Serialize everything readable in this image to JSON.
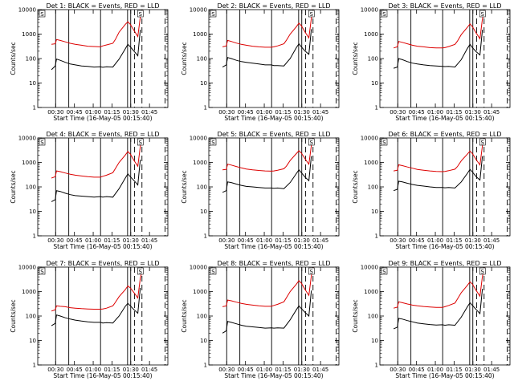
{
  "figure": {
    "panel_titles": [
      "Det 1: BLACK = Events, RED = LLD",
      "Det 2: BLACK = Events, RED = LLD",
      "Det 3: BLACK = Events, RED = LLD",
      "Det 4: BLACK = Events, RED = LLD",
      "Det 5: BLACK = Events, RED = LLD",
      "Det 6: BLACK = Events, RED = LLD",
      "Det 7: BLACK = Events, RED = LLD",
      "Det 8: BLACK = Events, RED = LLD",
      "Det 9: BLACK = Events, RED = LLD"
    ],
    "xlabel": "Start Time (16-May-05 00:15:40)",
    "ylabel": "Counts/sec",
    "xtick_labels": [
      "00:30",
      "00:45",
      "01:00",
      "01:15",
      "01:30",
      "01:45"
    ],
    "ytick_labels": [
      "1",
      "10",
      "100",
      "1000",
      "10000"
    ],
    "colors": {
      "events": "#000000",
      "lld": "#dd0000"
    }
  },
  "chart_data": {
    "type": "line",
    "layout": "3x3 grid of detector panels",
    "x_unit": "minutes since 00:15:40",
    "y_scale": "log",
    "ylim": [
      1,
      10000
    ],
    "xlim": [
      0,
      104
    ],
    "xtick_values": [
      14.33,
      29.33,
      44.33,
      59.33,
      74.33,
      89.33
    ],
    "solid_vertical_lines_x": [
      14.3,
      24.8,
      50.2,
      71.8,
      74.3
    ],
    "dashed_vertical_lines_x": [
      77.3,
      83.3,
      101.8
    ],
    "legend_marks": [
      "S",
      "S"
    ],
    "panels": [
      {
        "detector": 1,
        "series": [
          {
            "name": "Events",
            "color": "#000000",
            "x": [
              11,
              14,
              15,
              18,
              22,
              26,
              30,
              35,
              40,
              45,
              50,
              52,
              55,
              60,
              65,
              70,
              72,
              74,
              77,
              80,
              82
            ],
            "y": [
              35,
              50,
              95,
              85,
              70,
              60,
              55,
              50,
              48,
              45,
              46,
              44,
              46,
              45,
              95,
              250,
              380,
              300,
              200,
              130,
              1500
            ]
          },
          {
            "name": "LLD",
            "color": "#dd0000",
            "x": [
              11,
              14,
              15,
              18,
              22,
              26,
              30,
              35,
              40,
              45,
              50,
              52,
              55,
              60,
              62,
              65,
              70,
              72,
              74,
              77,
              80,
              82,
              84
            ],
            "y": [
              380,
              400,
              600,
              550,
              480,
              420,
              380,
              350,
              320,
              310,
              300,
              330,
              360,
              420,
              600,
              1200,
              2500,
              3200,
              2500,
              1400,
              800,
              5000,
              9500
            ]
          }
        ]
      },
      {
        "detector": 2,
        "series": [
          {
            "name": "Events",
            "color": "#000000",
            "x": [
              11,
              14,
              15,
              18,
              22,
              26,
              30,
              35,
              40,
              45,
              50,
              52,
              55,
              60,
              65,
              70,
              72,
              74,
              77,
              80,
              82
            ],
            "y": [
              45,
              55,
              110,
              100,
              85,
              75,
              70,
              65,
              60,
              55,
              55,
              52,
              52,
              50,
              100,
              280,
              400,
              300,
              200,
              150,
              1600
            ]
          },
          {
            "name": "LLD",
            "color": "#dd0000",
            "x": [
              11,
              14,
              15,
              18,
              22,
              26,
              30,
              35,
              40,
              45,
              50,
              52,
              55,
              60,
              62,
              65,
              70,
              72,
              74,
              77,
              80,
              82,
              84
            ],
            "y": [
              300,
              330,
              550,
              500,
              430,
              380,
              350,
              320,
              300,
              290,
              290,
              300,
              330,
              400,
              560,
              1000,
              2000,
              2800,
              2200,
              1200,
              700,
              4500,
              9500
            ]
          }
        ]
      },
      {
        "detector": 3,
        "series": [
          {
            "name": "Events",
            "color": "#000000",
            "x": [
              11,
              14,
              15,
              18,
              22,
              26,
              30,
              35,
              40,
              45,
              50,
              52,
              55,
              60,
              65,
              70,
              72,
              74,
              77,
              80,
              82
            ],
            "y": [
              40,
              45,
              100,
              90,
              75,
              65,
              60,
              55,
              52,
              50,
              48,
              47,
              48,
              45,
              90,
              260,
              380,
              280,
              190,
              140,
              1500
            ]
          },
          {
            "name": "LLD",
            "color": "#dd0000",
            "x": [
              11,
              14,
              15,
              18,
              22,
              26,
              30,
              35,
              40,
              45,
              50,
              52,
              55,
              60,
              62,
              65,
              70,
              72,
              74,
              77,
              80,
              82,
              84
            ],
            "y": [
              270,
              300,
              500,
              460,
              400,
              350,
              320,
              300,
              280,
              270,
              270,
              280,
              310,
              380,
              520,
              950,
              1900,
              2600,
              2000,
              1100,
              650,
              4200,
              9500
            ]
          }
        ]
      },
      {
        "detector": 4,
        "series": [
          {
            "name": "Events",
            "color": "#000000",
            "x": [
              11,
              14,
              15,
              18,
              22,
              26,
              30,
              35,
              40,
              45,
              50,
              52,
              55,
              60,
              65,
              70,
              72,
              74,
              77,
              80,
              82
            ],
            "y": [
              25,
              30,
              70,
              65,
              55,
              48,
              44,
              42,
              40,
              38,
              40,
              38,
              40,
              38,
              85,
              230,
              340,
              260,
              180,
              120,
              1300
            ]
          },
          {
            "name": "LLD",
            "color": "#dd0000",
            "x": [
              11,
              14,
              15,
              18,
              22,
              26,
              30,
              35,
              40,
              45,
              50,
              52,
              55,
              60,
              62,
              65,
              70,
              72,
              74,
              77,
              80,
              82,
              84
            ],
            "y": [
              230,
              260,
              450,
              420,
              370,
              330,
              300,
              280,
              260,
              250,
              250,
              270,
              300,
              380,
              560,
              1000,
              2000,
              2800,
              2200,
              1200,
              700,
              4500,
              9500
            ]
          }
        ]
      },
      {
        "detector": 5,
        "series": [
          {
            "name": "Events",
            "color": "#000000",
            "x": [
              11,
              14,
              15,
              18,
              22,
              26,
              30,
              35,
              40,
              45,
              50,
              52,
              55,
              60,
              65,
              70,
              72,
              74,
              77,
              80,
              82
            ],
            "y": [
              60,
              70,
              160,
              150,
              130,
              115,
              105,
              100,
              95,
              90,
              90,
              88,
              90,
              85,
              150,
              350,
              500,
              380,
              250,
              180,
              1800
            ]
          },
          {
            "name": "LLD",
            "color": "#dd0000",
            "x": [
              11,
              14,
              15,
              18,
              22,
              26,
              30,
              35,
              40,
              45,
              50,
              52,
              55,
              60,
              62,
              65,
              70,
              72,
              74,
              77,
              80,
              82,
              84
            ],
            "y": [
              500,
              520,
              850,
              780,
              680,
              600,
              540,
              500,
              470,
              450,
              440,
              450,
              480,
              550,
              700,
              1200,
              2300,
              3000,
              2400,
              1400,
              850,
              5000,
              9500
            ]
          }
        ]
      },
      {
        "detector": 6,
        "series": [
          {
            "name": "Events",
            "color": "#000000",
            "x": [
              11,
              14,
              15,
              18,
              22,
              26,
              30,
              35,
              40,
              45,
              50,
              52,
              55,
              60,
              65,
              70,
              72,
              74,
              77,
              80,
              82
            ],
            "y": [
              70,
              80,
              170,
              160,
              140,
              125,
              115,
              108,
              100,
              95,
              95,
              92,
              94,
              90,
              160,
              360,
              520,
              400,
              260,
              190,
              1800
            ]
          },
          {
            "name": "LLD",
            "color": "#dd0000",
            "x": [
              11,
              14,
              15,
              18,
              22,
              26,
              30,
              35,
              40,
              45,
              50,
              52,
              55,
              60,
              62,
              65,
              70,
              72,
              74,
              77,
              80,
              82,
              84
            ],
            "y": [
              450,
              480,
              800,
              740,
              650,
              580,
              520,
              480,
              450,
              430,
              420,
              430,
              460,
              530,
              680,
              1150,
              2200,
              2900,
              2300,
              1300,
              800,
              4800,
              9500
            ]
          }
        ]
      },
      {
        "detector": 7,
        "series": [
          {
            "name": "Events",
            "color": "#000000",
            "x": [
              11,
              14,
              15,
              18,
              22,
              26,
              30,
              35,
              40,
              45,
              50,
              52,
              55,
              60,
              65,
              70,
              72,
              74,
              77,
              80,
              82
            ],
            "y": [
              40,
              50,
              110,
              100,
              85,
              75,
              68,
              62,
              58,
              55,
              55,
              52,
              54,
              52,
              100,
              250,
              330,
              260,
              180,
              130,
              1400
            ]
          },
          {
            "name": "LLD",
            "color": "#dd0000",
            "x": [
              11,
              14,
              15,
              18,
              22,
              26,
              30,
              35,
              40,
              45,
              50,
              52,
              55,
              60,
              62,
              65,
              70,
              72,
              74,
              77,
              80,
              82,
              84
            ],
            "y": [
              160,
              180,
              260,
              250,
              240,
              220,
              210,
              200,
              195,
              190,
              190,
              195,
              210,
              260,
              360,
              620,
              1200,
              1700,
              1400,
              900,
              550,
              3500,
              9000
            ]
          }
        ]
      },
      {
        "detector": 8,
        "series": [
          {
            "name": "Events",
            "color": "#000000",
            "x": [
              11,
              14,
              15,
              18,
              22,
              26,
              30,
              35,
              40,
              45,
              50,
              52,
              55,
              60,
              65,
              70,
              72,
              74,
              77,
              80,
              82
            ],
            "y": [
              20,
              25,
              60,
              55,
              48,
              42,
              38,
              36,
              34,
              32,
              33,
              32,
              33,
              32,
              70,
              180,
              260,
              200,
              140,
              100,
              1100
            ]
          },
          {
            "name": "LLD",
            "color": "#dd0000",
            "x": [
              11,
              14,
              15,
              18,
              22,
              26,
              30,
              35,
              40,
              45,
              50,
              52,
              55,
              60,
              62,
              65,
              70,
              72,
              74,
              77,
              80,
              82,
              84
            ],
            "y": [
              240,
              260,
              450,
              420,
              370,
              330,
              300,
              280,
              260,
              250,
              250,
              270,
              300,
              380,
              560,
              1000,
              2000,
              2800,
              2200,
              1200,
              700,
              4500,
              9500
            ]
          }
        ]
      },
      {
        "detector": 9,
        "series": [
          {
            "name": "Events",
            "color": "#000000",
            "x": [
              11,
              14,
              15,
              18,
              22,
              26,
              30,
              35,
              40,
              45,
              50,
              52,
              55,
              60,
              65,
              70,
              72,
              74,
              77,
              80,
              82
            ],
            "y": [
              30,
              35,
              80,
              75,
              65,
              58,
              52,
              48,
              45,
              43,
              44,
              42,
              44,
              42,
              90,
              240,
              350,
              270,
              185,
              125,
              1300
            ]
          },
          {
            "name": "LLD",
            "color": "#dd0000",
            "x": [
              11,
              14,
              15,
              18,
              22,
              26,
              30,
              35,
              40,
              45,
              50,
              52,
              55,
              60,
              62,
              65,
              70,
              72,
              74,
              77,
              80,
              82,
              84
            ],
            "y": [
              210,
              230,
              380,
              350,
              310,
              280,
              260,
              245,
              235,
              225,
              225,
              240,
              270,
              340,
              500,
              900,
              1800,
              2500,
              2000,
              1100,
              650,
              4200,
              9500
            ]
          }
        ]
      }
    ]
  }
}
